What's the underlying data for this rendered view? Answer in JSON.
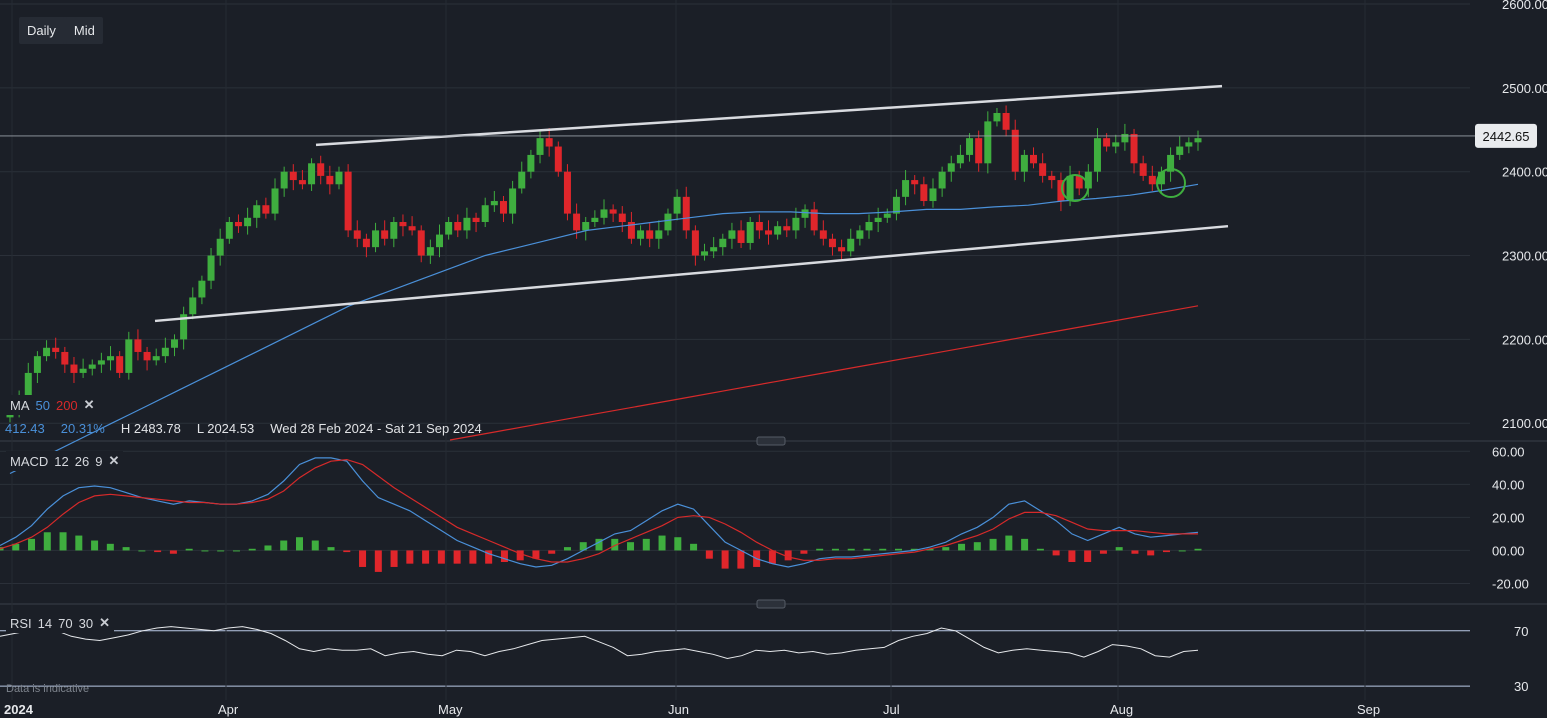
{
  "toolbar": {
    "interval": "Daily",
    "price_type": "Mid"
  },
  "price_axis": {
    "current_label": "2442.65"
  },
  "ma_legend": {
    "label": "MA",
    "period1": "50",
    "period2": "200",
    "color1": "#4a90d9",
    "color2": "#d62a2a"
  },
  "stats": {
    "value": "412.43",
    "pct": "20.31%",
    "high": "H 2483.78",
    "low": "L 2024.53",
    "range": "Wed 28 Feb 2024 - Sat 21 Sep 2024"
  },
  "macd_legend": {
    "label": "MACD",
    "fast": "12",
    "slow": "26",
    "signal": "9"
  },
  "rsi_legend": {
    "label": "RSI",
    "period": "14",
    "upper": "70",
    "lower": "30"
  },
  "footer": {
    "disclaimer": "Data is indicative"
  },
  "colors": {
    "background": "#1b1f27",
    "up": "#3fae3f",
    "down": "#e0262b",
    "ma50": "#4a90d9",
    "ma200": "#d62a2a",
    "trendline": "#d9dbe0"
  },
  "chart_data": [
    {
      "type": "candlestick",
      "title": "",
      "x_ticks": [
        "2024",
        "Apr",
        "May",
        "Jun",
        "Jul",
        "Aug",
        "Sep"
      ],
      "y_ticks": [
        "2600.00",
        "2500.00",
        "2400.00",
        "2300.00",
        "2200.00",
        "2100.00"
      ],
      "ylim": [
        2080,
        2600
      ],
      "current_price": 2442.65,
      "close_series": [
        2115,
        2130,
        2160,
        2180,
        2190,
        2185,
        2170,
        2160,
        2165,
        2170,
        2175,
        2180,
        2160,
        2200,
        2185,
        2175,
        2180,
        2190,
        2200,
        2230,
        2250,
        2270,
        2300,
        2320,
        2340,
        2335,
        2345,
        2360,
        2350,
        2380,
        2400,
        2390,
        2385,
        2410,
        2395,
        2385,
        2400,
        2330,
        2320,
        2310,
        2330,
        2320,
        2340,
        2335,
        2330,
        2300,
        2310,
        2325,
        2340,
        2330,
        2345,
        2340,
        2360,
        2365,
        2350,
        2380,
        2400,
        2420,
        2440,
        2430,
        2400,
        2350,
        2330,
        2340,
        2345,
        2355,
        2350,
        2340,
        2320,
        2330,
        2320,
        2330,
        2350,
        2370,
        2330,
        2300,
        2305,
        2310,
        2320,
        2330,
        2315,
        2340,
        2330,
        2325,
        2335,
        2330,
        2345,
        2355,
        2330,
        2320,
        2310,
        2305,
        2320,
        2330,
        2340,
        2345,
        2350,
        2370,
        2390,
        2385,
        2365,
        2380,
        2400,
        2410,
        2420,
        2440,
        2410,
        2460,
        2470,
        2450,
        2400,
        2420,
        2410,
        2395,
        2390,
        2365,
        2395,
        2380,
        2400,
        2440,
        2430,
        2435,
        2445,
        2410,
        2395,
        2385,
        2400,
        2420,
        2430,
        2435,
        2440
      ],
      "ma50_series": [
        2040,
        2060,
        2080,
        2100,
        2120,
        2140,
        2160,
        2180,
        2200,
        2220,
        2240,
        2255,
        2270,
        2285,
        2300,
        2310,
        2320,
        2330,
        2335,
        2340,
        2345,
        2350,
        2352,
        2352,
        2350,
        2350,
        2352,
        2355,
        2355,
        2358,
        2360,
        2365,
        2368,
        2372,
        2378,
        2385
      ],
      "ma200_series": [
        2080,
        2090,
        2100,
        2110,
        2120,
        2130,
        2140,
        2150,
        2160,
        2170,
        2180,
        2190,
        2200,
        2210,
        2220,
        2230,
        2240
      ],
      "trendline_upper": [
        [
          2024,
          2432
        ],
        [
          2025,
          2502
        ]
      ],
      "trendline_lower": [
        [
          2024,
          2222
        ],
        [
          2025,
          2335
        ]
      ]
    },
    {
      "type": "bar",
      "title": "MACD",
      "y_ticks": [
        "60.00",
        "40.00",
        "20.00",
        "00.00",
        "-20.00"
      ],
      "ylim": [
        -30,
        62
      ],
      "macd_series": [
        3,
        8,
        15,
        25,
        33,
        38,
        39,
        38,
        35,
        32,
        30,
        28,
        30,
        29,
        28,
        28,
        30,
        34,
        42,
        52,
        56,
        56,
        54,
        42,
        32,
        28,
        24,
        18,
        12,
        6,
        2,
        -2,
        -5,
        -8,
        -10,
        -9,
        -5,
        0,
        5,
        10,
        12,
        18,
        24,
        28,
        25,
        15,
        5,
        0,
        -5,
        -8,
        -10,
        -8,
        -5,
        -4,
        -4,
        -3,
        -2,
        -1,
        0,
        2,
        5,
        10,
        14,
        20,
        28,
        30,
        24,
        18,
        10,
        6,
        10,
        14,
        10,
        8,
        9,
        10,
        11
      ],
      "signal_series": [
        1,
        4,
        8,
        14,
        22,
        29,
        33,
        34,
        33,
        32,
        31,
        30,
        29,
        29,
        28,
        28,
        29,
        31,
        36,
        44,
        50,
        54,
        55,
        52,
        45,
        38,
        32,
        26,
        20,
        14,
        10,
        6,
        2,
        -2,
        -5,
        -7,
        -7,
        -5,
        -2,
        3,
        7,
        11,
        15,
        20,
        21,
        20,
        16,
        11,
        5,
        0,
        -4,
        -6,
        -6,
        -5,
        -5,
        -4,
        -3,
        -2,
        -1,
        1,
        3,
        6,
        9,
        13,
        19,
        23,
        23,
        21,
        17,
        13,
        12,
        12,
        12,
        11,
        10,
        10,
        10
      ],
      "histogram_series": [
        2,
        4,
        7,
        11,
        11,
        9,
        6,
        4,
        2,
        0,
        -1,
        -2,
        1,
        0,
        0,
        0,
        1,
        3,
        6,
        8,
        6,
        2,
        -1,
        -10,
        -13,
        -10,
        -8,
        -8,
        -8,
        -8,
        -8,
        -8,
        -7,
        -6,
        -5,
        -2,
        2,
        5,
        7,
        7,
        5,
        7,
        9,
        8,
        4,
        -5,
        -11,
        -11,
        -10,
        -8,
        -6,
        -2,
        1,
        1,
        1,
        1,
        1,
        1,
        1,
        1,
        2,
        4,
        5,
        7,
        9,
        7,
        1,
        -3,
        -7,
        -7,
        -2,
        2,
        -2,
        -3,
        -1,
        0,
        1
      ]
    },
    {
      "type": "line",
      "title": "RSI",
      "y_ticks": [
        "70",
        "30"
      ],
      "ylim": [
        20,
        85
      ],
      "rsi_series": [
        66,
        68,
        70,
        72,
        70,
        66,
        64,
        63,
        65,
        67,
        70,
        72,
        73,
        72,
        71,
        70,
        72,
        73,
        71,
        68,
        63,
        57,
        55,
        57,
        56,
        56,
        57,
        52,
        54,
        55,
        53,
        52,
        56,
        55,
        52,
        55,
        57,
        60,
        63,
        64,
        65,
        66,
        62,
        58,
        52,
        53,
        55,
        56,
        57,
        55,
        53,
        50,
        52,
        56,
        55,
        56,
        54,
        55,
        53,
        54,
        56,
        57,
        58,
        63,
        66,
        68,
        72,
        70,
        64,
        58,
        54,
        56,
        57,
        56,
        55,
        54,
        51,
        55,
        60,
        59,
        57,
        52,
        51,
        55,
        56
      ]
    }
  ]
}
